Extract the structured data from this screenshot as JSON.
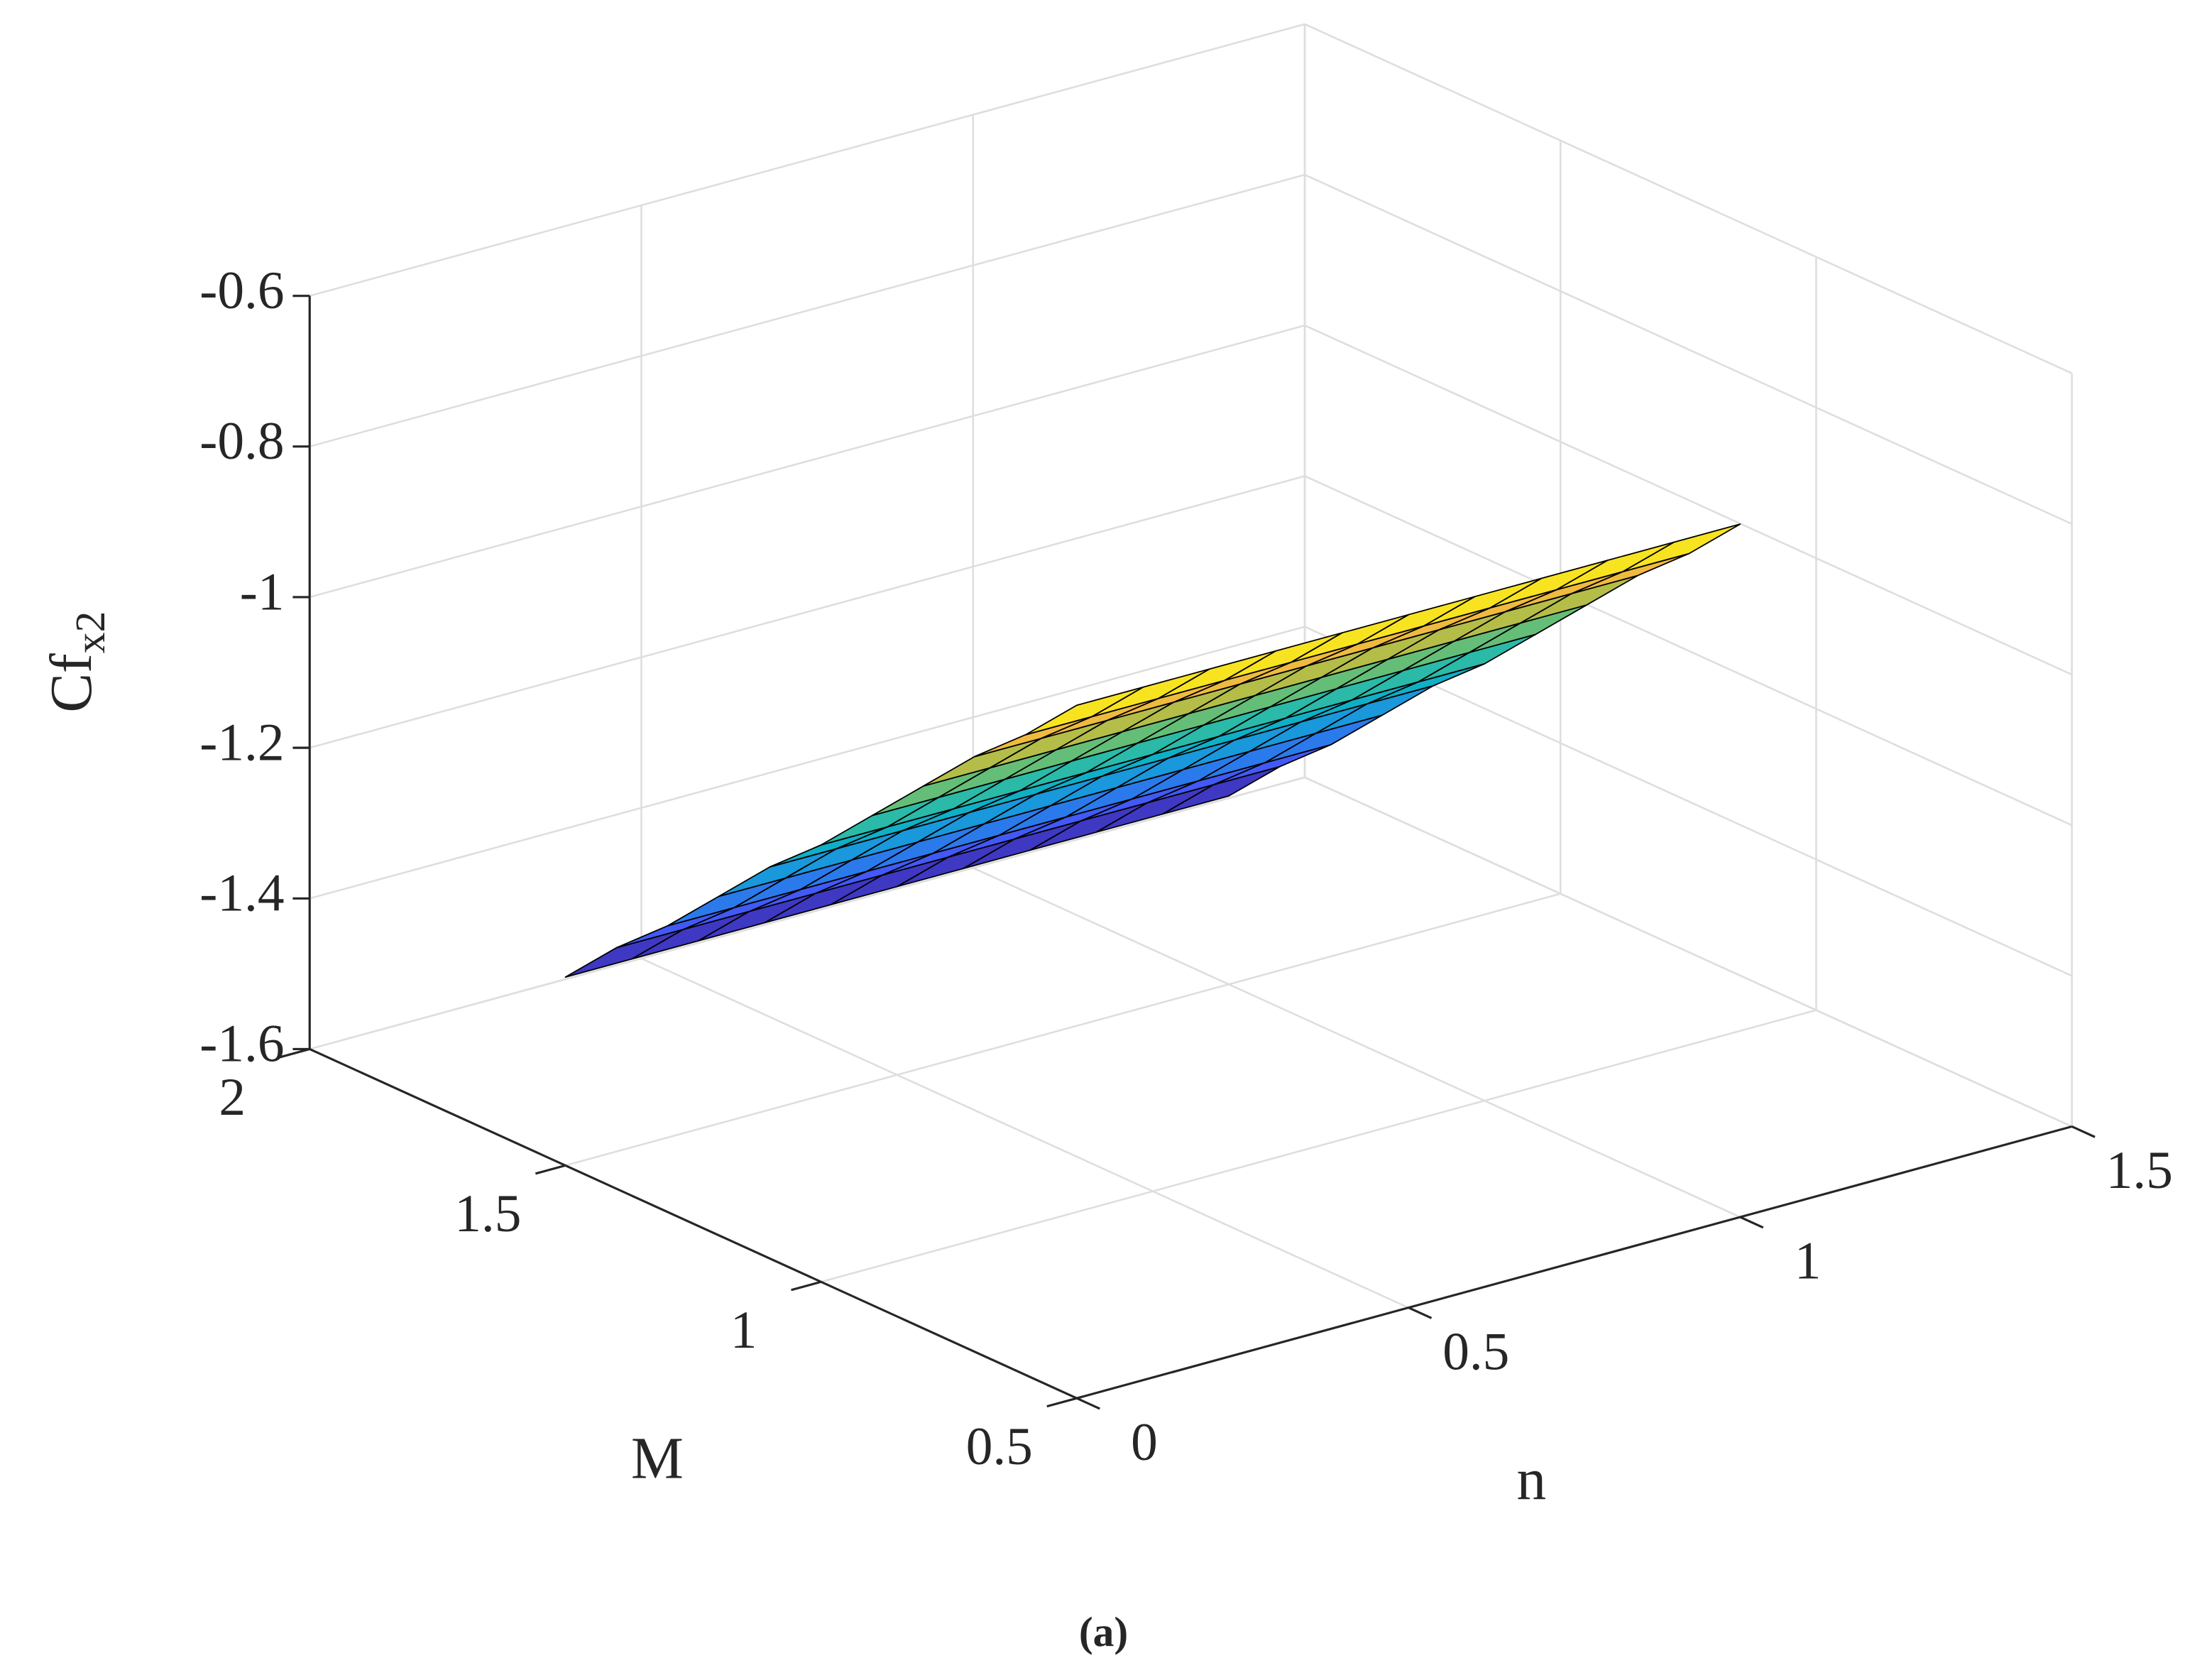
{
  "chart_data": {
    "type": "surface",
    "xlabel": "n",
    "ylabel": "M",
    "zlabel": "Cf",
    "zlabel_subscript": "x2",
    "caption": "(a)",
    "colormap": "parula",
    "grid": true,
    "xlim": [
      0,
      1.5
    ],
    "ylim": [
      0.5,
      2
    ],
    "zlim": [
      -1.6,
      -0.6
    ],
    "xticks": [
      0,
      0.5,
      1,
      1.5
    ],
    "yticks": [
      0.5,
      1,
      1.5,
      2
    ],
    "zticks": [
      -1.6,
      -1.4,
      -1.2,
      -1,
      -0.8,
      -0.6
    ],
    "x": [
      0,
      0.1,
      0.2,
      0.3,
      0.4,
      0.5,
      0.6,
      0.7,
      0.8,
      0.9,
      1
    ],
    "y": [
      0.5,
      0.6,
      0.7,
      0.8,
      0.9,
      1,
      1.1,
      1.2,
      1.3,
      1.4,
      1.5
    ],
    "z": [
      [
        -0.68,
        -0.68,
        -0.68,
        -0.68,
        -0.68,
        -0.68,
        -0.68,
        -0.68,
        -0.68,
        -0.68,
        -0.68
      ],
      [
        -0.75,
        -0.75,
        -0.75,
        -0.75,
        -0.75,
        -0.75,
        -0.75,
        -0.75,
        -0.75,
        -0.75,
        -0.75
      ],
      [
        -0.81,
        -0.81,
        -0.81,
        -0.81,
        -0.81,
        -0.81,
        -0.81,
        -0.81,
        -0.81,
        -0.81,
        -0.81
      ],
      [
        -0.88,
        -0.88,
        -0.88,
        -0.88,
        -0.88,
        -0.88,
        -0.88,
        -0.88,
        -0.88,
        -0.88,
        -0.88
      ],
      [
        -0.95,
        -0.95,
        -0.95,
        -0.95,
        -0.95,
        -0.95,
        -0.95,
        -0.95,
        -0.95,
        -0.95,
        -0.95
      ],
      [
        -1.02,
        -1.02,
        -1.02,
        -1.02,
        -1.02,
        -1.02,
        -1.02,
        -1.02,
        -1.02,
        -1.02,
        -1.02
      ],
      [
        -1.08,
        -1.08,
        -1.08,
        -1.08,
        -1.08,
        -1.08,
        -1.08,
        -1.08,
        -1.08,
        -1.08,
        -1.08
      ],
      [
        -1.15,
        -1.15,
        -1.15,
        -1.15,
        -1.15,
        -1.15,
        -1.15,
        -1.15,
        -1.15,
        -1.15,
        -1.15
      ],
      [
        -1.22,
        -1.22,
        -1.22,
        -1.22,
        -1.22,
        -1.22,
        -1.22,
        -1.22,
        -1.22,
        -1.22,
        -1.22
      ],
      [
        -1.28,
        -1.28,
        -1.28,
        -1.28,
        -1.28,
        -1.28,
        -1.28,
        -1.28,
        -1.28,
        -1.28,
        -1.28
      ],
      [
        -1.35,
        -1.35,
        -1.35,
        -1.35,
        -1.35,
        -1.35,
        -1.35,
        -1.35,
        -1.35,
        -1.35,
        -1.35
      ]
    ]
  }
}
